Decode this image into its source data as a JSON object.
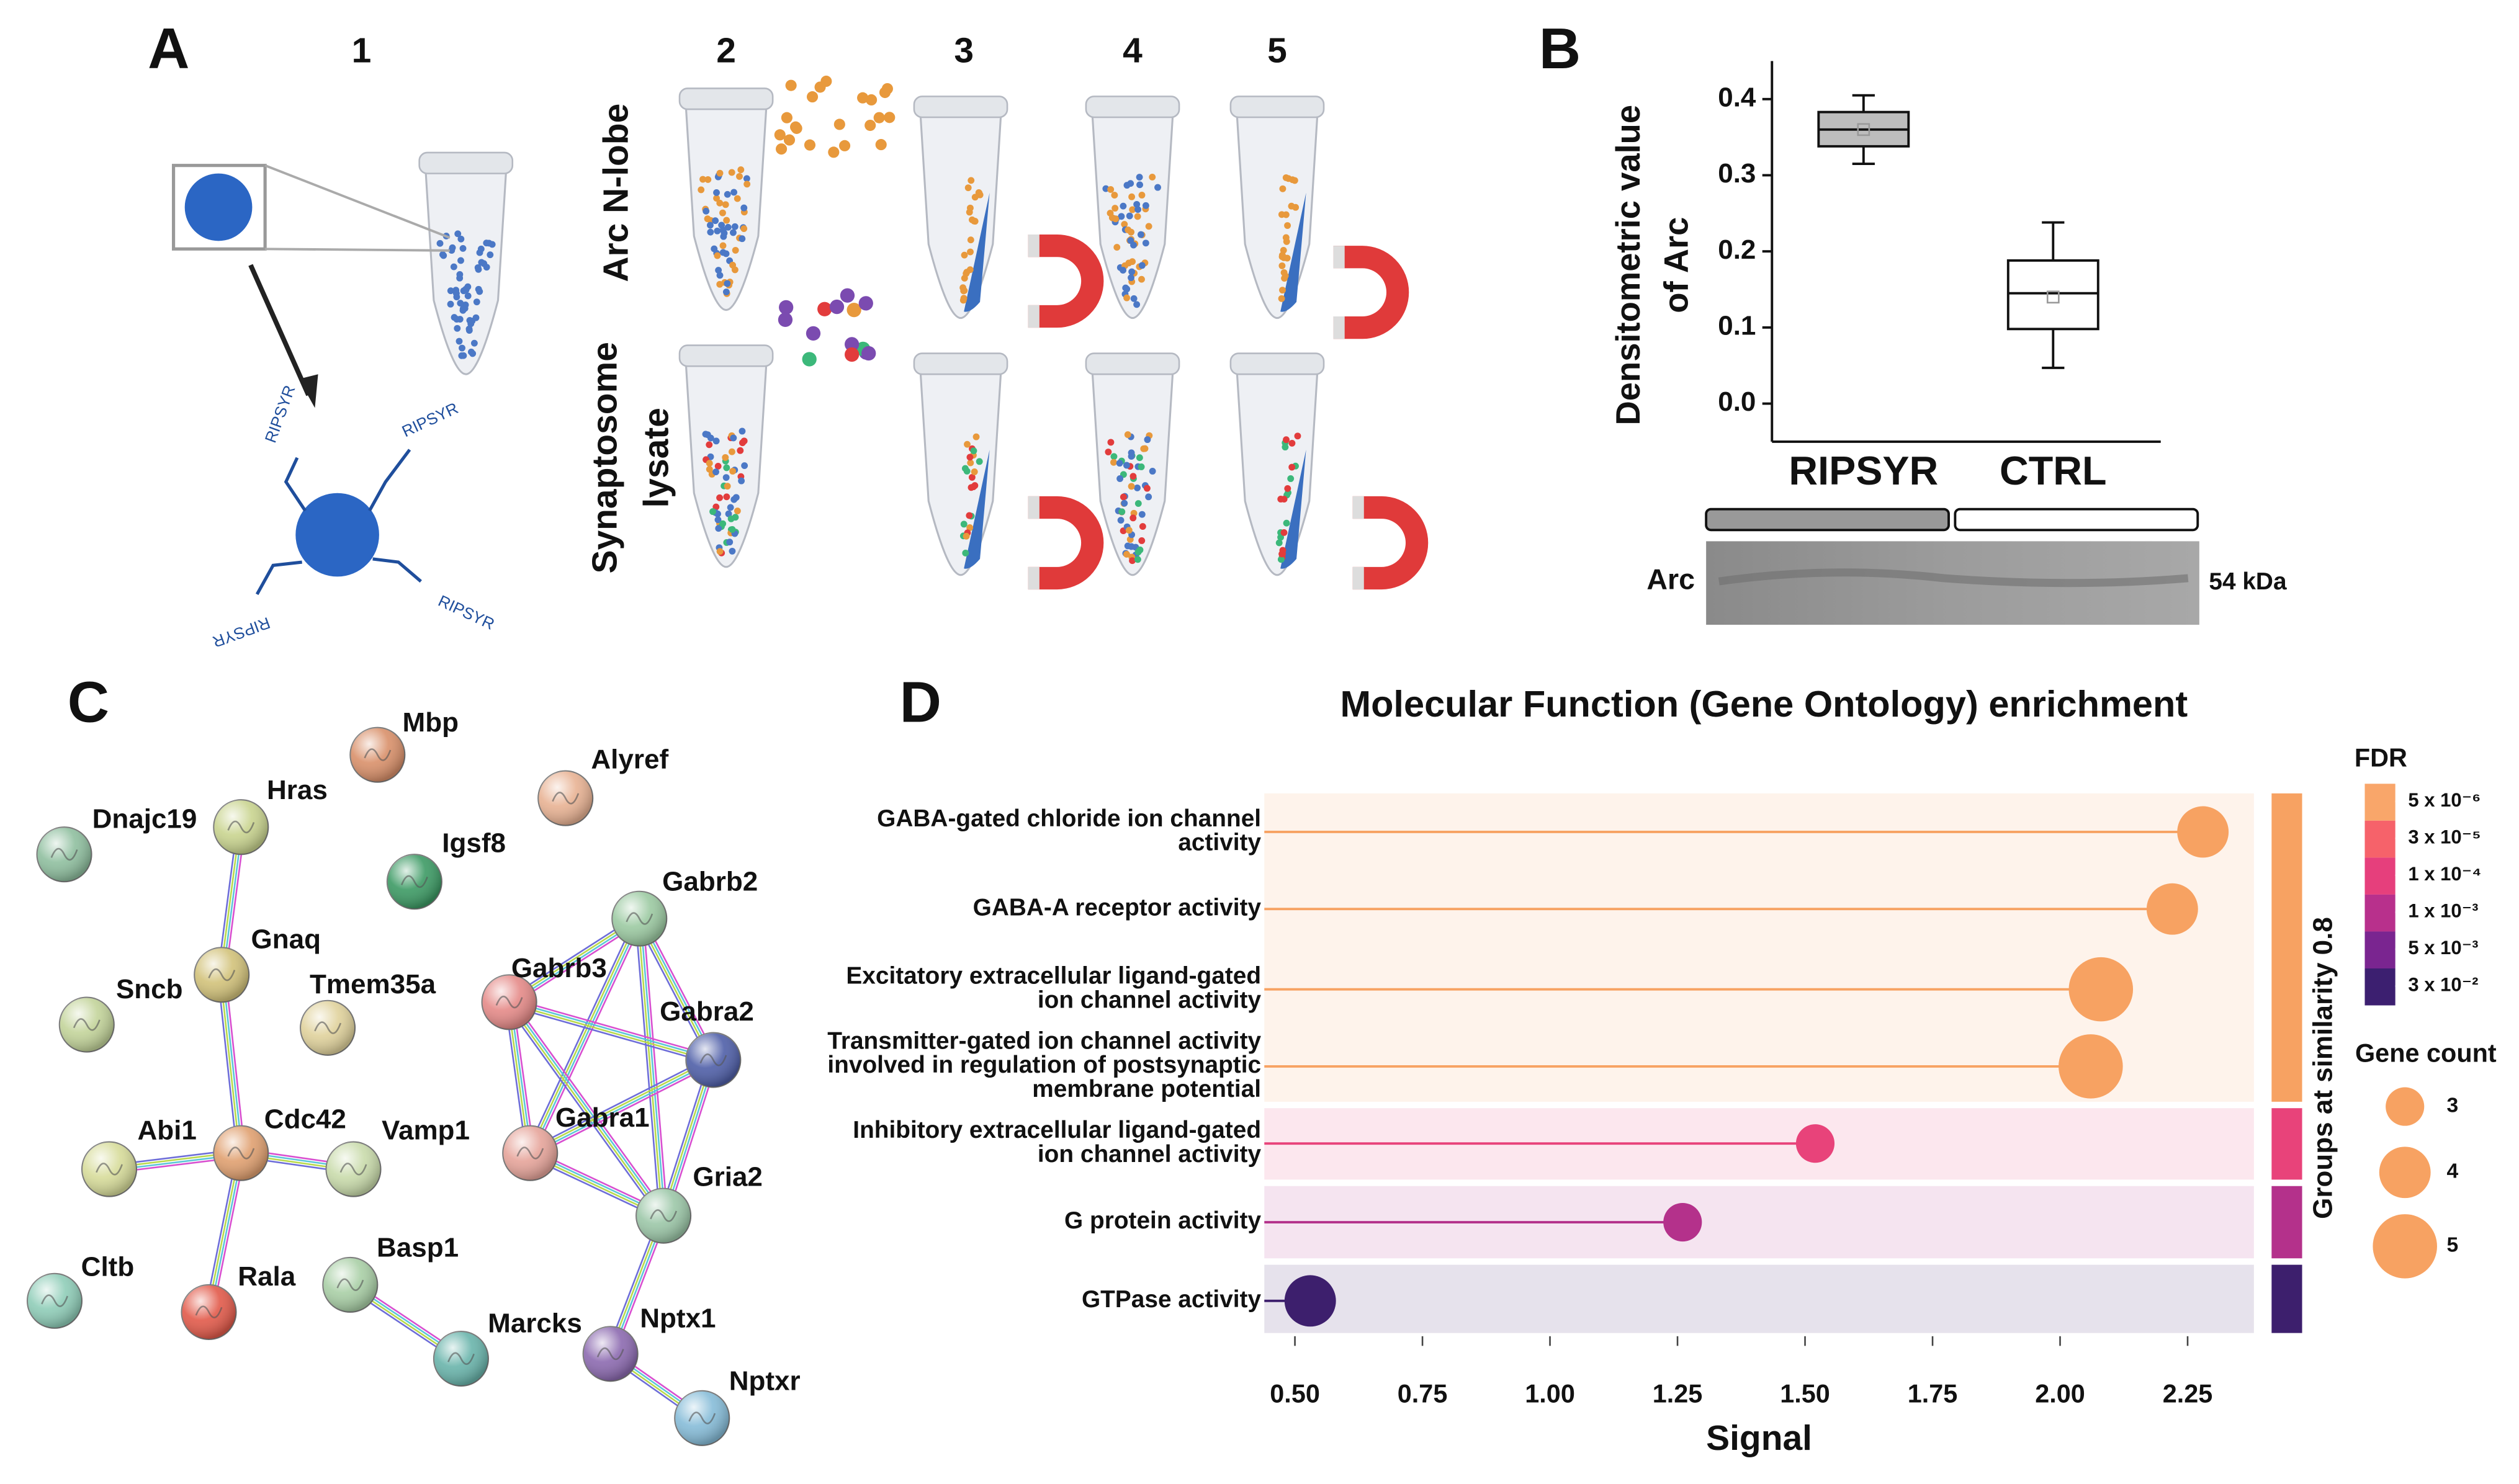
{
  "panels": {
    "A": {
      "letter": "A",
      "steps": [
        "1",
        "2",
        "3",
        "4",
        "5"
      ],
      "row_labels": [
        "Arc N-lobe"
      ],
      "row2_label": [
        "Synaptosome",
        "lysate"
      ],
      "linker": "RIPSYR"
    },
    "B": {
      "letter": "B",
      "blot_label": "Arc",
      "blot_size": "54 kDa"
    },
    "C": {
      "letter": "C",
      "nodes": [
        "Mbp",
        "Alyref",
        "Dnajc19",
        "Hras",
        "Igsf8",
        "Gabrb2",
        "Gnaq",
        "Tmem35a",
        "Sncb",
        "Gabrb3",
        "Gabra2",
        "Abi1",
        "Cdc42",
        "Vamp1",
        "Gabra1",
        "Gria2",
        "Cltb",
        "Rala",
        "Basp1",
        "Marcks",
        "Nptx1",
        "Nptxr"
      ]
    },
    "D": {
      "letter": "D"
    }
  },
  "chart_data": [
    {
      "type": "box",
      "ylabel": [
        "Densitometric value",
        "of Arc"
      ],
      "categories": [
        "RIPSYR",
        "CTRL"
      ],
      "colors": [
        "#bdbdbd",
        "#ffffff"
      ],
      "boxes": [
        {
          "min": 0.315,
          "q1": 0.338,
          "median": 0.36,
          "q3": 0.383,
          "max": 0.405,
          "mean": 0.36
        },
        {
          "min": 0.047,
          "q1": 0.098,
          "median": 0.145,
          "q3": 0.188,
          "max": 0.238,
          "mean": 0.14
        }
      ],
      "ylim": [
        -0.05,
        0.45
      ],
      "yticks": [
        {
          "value": 0,
          "label": "0.0"
        },
        0.1,
        0.2,
        0.3,
        0.4
      ]
    },
    {
      "type": "lollipop",
      "title": "Molecular Function (Gene Ontology) enrichment",
      "xlabel": "Signal",
      "categories": [
        [
          "GABA-gated chloride ion channel",
          "activity"
        ],
        [
          "GABA-A receptor activity"
        ],
        [
          "Excitatory extracellular ligand-gated",
          "ion channel activity"
        ],
        [
          "Transmitter-gated ion channel activity",
          "involved in regulation of postsynaptic",
          "membrane potential"
        ],
        [
          "Inhibitory extracellular ligand-gated",
          "ion channel activity"
        ],
        [
          "G protein activity"
        ],
        [
          "GTPase activity"
        ]
      ],
      "values": [
        2.28,
        2.22,
        2.08,
        2.06,
        1.52,
        1.26,
        0.53
      ],
      "sizes": [
        4,
        4,
        5,
        5,
        3,
        3,
        4
      ],
      "colors": [
        "#f7a262",
        "#f7a262",
        "#f7a262",
        "#f7a262",
        "#e8437a",
        "#b4318b",
        "#3d1f6d"
      ],
      "xlim": [
        0.44,
        2.38
      ],
      "xticks": [
        {
          "value": 0.5,
          "label": "0.50"
        },
        0.75,
        {
          "value": 1,
          "label": "1.00"
        },
        1.25,
        {
          "value": 1.5,
          "label": "1.50"
        },
        1.75,
        {
          "value": 2,
          "label": "2.00"
        },
        2.25
      ],
      "group_label": "Groups at similarity 0.8",
      "fdr_title": "FDR",
      "fdr_labels": [
        "5 x 10⁻⁶",
        "3 x 10⁻⁵",
        "1 x 10⁻⁴",
        "1 x 10⁻³",
        "5 x 10⁻³",
        "3 x 10⁻²"
      ],
      "fdr_colors": [
        "#f9a66a",
        "#f6626a",
        "#e63f7c",
        "#b8308c",
        "#7a2590",
        "#3c1f70"
      ],
      "size_title": "Gene count",
      "size_legend": [
        3,
        4,
        5
      ]
    }
  ]
}
